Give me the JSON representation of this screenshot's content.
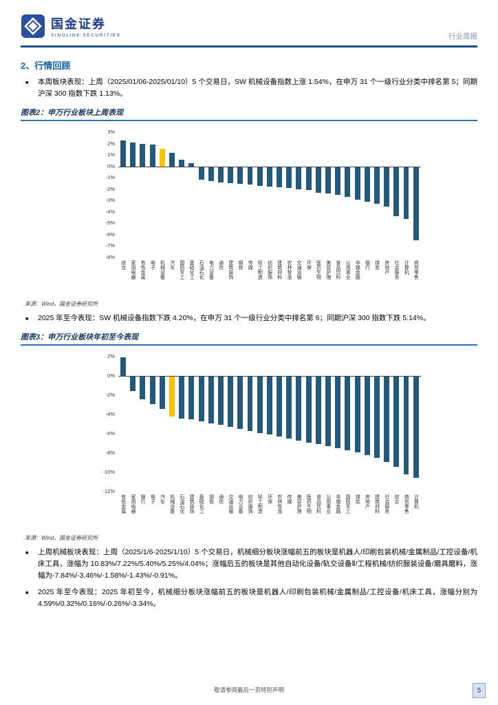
{
  "header": {
    "brand_cn": "国金证券",
    "brand_en": "SINOLINK SECURITIES",
    "report_type": "行业周报"
  },
  "section_title": "2、行情回顾",
  "bullets": [
    "本周板块表现：上周（2025/01/06-2025/01/10）5 个交易日，SW 机械设备指数上涨 1.54%，在申万 31 个一级行业分类中排名第 5；同期沪深 300 指数下跌 1.13%。",
    "2025 年至今表现：SW 机械设备指数下跌 4.20%，在申万 31 个一级行业分类中排名第 6；同期沪深 300 指数下跌 5.14%。",
    "上周机械板块表现：上周（2025/1/6-2025/1/10）5 个交易日，机械细分板块涨幅前五的板块是机器人/印刷包装机械/金属制品/工控设备/机床工具，涨幅为 10.83%/7.22%/5.40%/5.25%/4.04%；涨幅后五的板块是其他自动化设备/轨交设备Ⅱ/工程机械/纺织服装设备/磨具磨料，涨幅为-7.84%/-3.46%/-1.58%/-1.43%/-0.91%。",
    "2025 年至今表现：2025 年初至今，机械细分板块涨幅前五的板块是机器人/印刷包装机械/金属制品/工控设备/机床工具，涨幅分别为 4.59%/0.32%/0.16%/-0.26%/-3.34%。"
  ],
  "figures": [
    {
      "title": "图表2：申万行业板块上周表现",
      "source": "来源：Wind，国金证券研究所"
    },
    {
      "title": "图表3：申万行业板块年初至今表现",
      "source": "来源：Wind，国金证券研究所"
    }
  ],
  "theme": {
    "bar_color": "#23597B",
    "highlight_color": "#FFC000",
    "accent_blue": "#1F4E8C",
    "title_navy": "#17365D"
  },
  "chart_data": [
    {
      "type": "bar",
      "title": "申万行业板块上周表现",
      "categories": [
        "综合",
        "家用电器",
        "有色金属",
        "电子",
        "机械设备",
        "汽车",
        "国防军工",
        "基础化工",
        "石油石化",
        "电力设备",
        "通信",
        "建筑装饰",
        "钢铁",
        "传媒",
        "轻工制造",
        "纺织服饰",
        "建筑材料",
        "农林牧渔",
        "交通运输",
        "环保",
        "医药生物",
        "美容护理",
        "食品饮料",
        "公用事业",
        "非银金融",
        "银行",
        "煤炭",
        "房地产",
        "社会服务",
        "计算机",
        "商贸零售"
      ],
      "values": [
        2.3,
        2.1,
        2.0,
        1.9,
        1.54,
        1.2,
        0.6,
        0.3,
        -1.2,
        -1.3,
        -1.4,
        -1.5,
        -1.55,
        -1.6,
        -1.7,
        -1.8,
        -1.85,
        -1.9,
        -2.0,
        -2.1,
        -2.3,
        -2.4,
        -2.5,
        -2.7,
        -2.9,
        -3.1,
        -3.3,
        -3.5,
        -4.4,
        -4.6,
        -6.5
      ],
      "highlight_category": "机械设备",
      "highlight_index": 4,
      "ylim": [
        -8,
        3
      ],
      "yticks": [
        3,
        2,
        1,
        0,
        -1,
        -2,
        -3,
        -4,
        -5,
        -6,
        -7,
        -8
      ],
      "grid": false,
      "legend": "none"
    },
    {
      "type": "bar",
      "title": "申万行业板块年初至今表现",
      "categories": [
        "有色金属",
        "家用电器",
        "银行",
        "电子",
        "汽车",
        "机械设备",
        "石油石化",
        "建筑装饰",
        "基础化工",
        "钢铁",
        "通信",
        "交通运输",
        "电力设备",
        "纺织服饰",
        "轻工制造",
        "环保",
        "农林牧渔",
        "传媒",
        "美容护理",
        "医药生物",
        "食品饮料",
        "公用事业",
        "非银金融",
        "国防军工",
        "煤炭",
        "房地产",
        "建筑材料",
        "社会服务",
        "综合",
        "商贸零售",
        "计算机"
      ],
      "values": [
        1.9,
        -1.6,
        -2.4,
        -2.9,
        -3.4,
        -4.2,
        -4.4,
        -4.5,
        -4.7,
        -4.9,
        -5.1,
        -5.3,
        -5.5,
        -5.7,
        -5.9,
        -6.1,
        -6.3,
        -6.5,
        -6.7,
        -6.9,
        -7.1,
        -7.3,
        -7.5,
        -7.7,
        -7.9,
        -8.2,
        -8.5,
        -8.9,
        -9.4,
        -10.2,
        -10.6
      ],
      "highlight_category": "机械设备",
      "highlight_index": 5,
      "ylim": [
        -12,
        2
      ],
      "yticks": [
        2,
        0,
        -2,
        -4,
        -6,
        -8,
        -10,
        -12
      ],
      "grid": false,
      "legend": "none"
    }
  ],
  "footer": {
    "disclaimer": "敬请参阅最后一页特别声明",
    "page_number": "5"
  }
}
